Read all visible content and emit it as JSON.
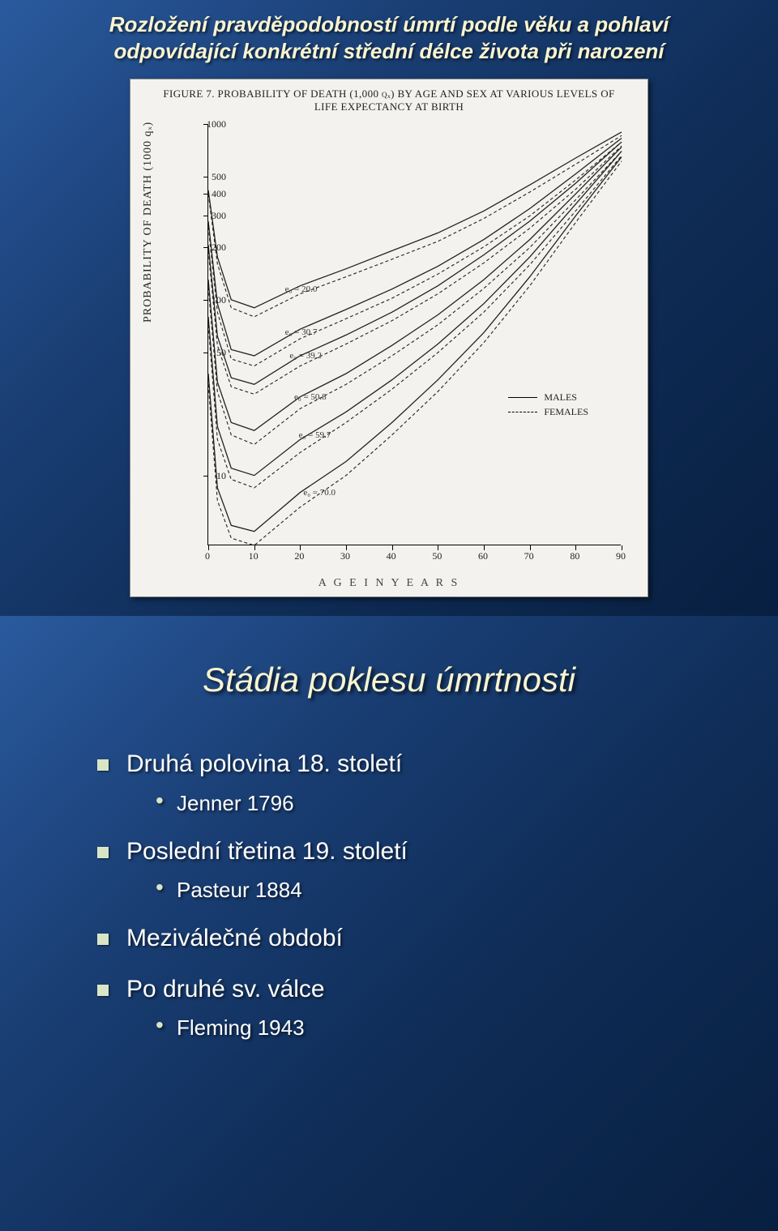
{
  "slide1": {
    "title_line1": "Rozložení pravděpodobností úmrtí podle věku a pohlaví",
    "title_line2": "odpovídající konkrétní střední délce života při narození",
    "figure": {
      "caption": "FIGURE 7.  PROBABILITY OF DEATH (1,000 qₓ) BY AGE AND SEX AT VARIOUS LEVELS OF LIFE EXPECTANCY AT BIRTH",
      "ylabel": "PROBABILITY  OF  DEATH  (1000 qₓ)",
      "xlabel": "A G E    I N    Y E A R S",
      "yticks": [
        {
          "v": 1000,
          "label": "1000"
        },
        {
          "v": 500,
          "label": "500"
        },
        {
          "v": 400,
          "label": "400"
        },
        {
          "v": 300,
          "label": "300"
        },
        {
          "v": 200,
          "label": "200"
        },
        {
          "v": 100,
          "label": "100"
        },
        {
          "v": 50,
          "label": "50"
        },
        {
          "v": 10,
          "label": "10"
        }
      ],
      "xticks": [
        0,
        10,
        20,
        30,
        40,
        50,
        60,
        70,
        80,
        90
      ],
      "xlim": [
        0,
        90
      ],
      "ylim_log": [
        4,
        1000
      ],
      "legend": [
        {
          "label": "MALES",
          "style": "solid"
        },
        {
          "label": "FEMALES",
          "style": "dash"
        }
      ],
      "curve_labels": [
        {
          "text": "e₀ = 20.0",
          "x": 16,
          "y": 115
        },
        {
          "text": "e₀ = 30.7",
          "x": 16,
          "y": 65
        },
        {
          "text": "e₀ = 39.2",
          "x": 17,
          "y": 48
        },
        {
          "text": "e₀ = 50.8",
          "x": 18,
          "y": 28
        },
        {
          "text": "e₀ = 59.7",
          "x": 19,
          "y": 17
        },
        {
          "text": "e₀ = 70.0",
          "x": 20,
          "y": 8
        }
      ],
      "series": [
        {
          "e0": "20.0",
          "sex": "M",
          "pts": [
            [
              0,
              420
            ],
            [
              2,
              175
            ],
            [
              5,
              100
            ],
            [
              10,
              90
            ],
            [
              20,
              120
            ],
            [
              30,
              150
            ],
            [
              40,
              190
            ],
            [
              50,
              240
            ],
            [
              60,
              320
            ],
            [
              70,
              450
            ],
            [
              80,
              640
            ],
            [
              90,
              900
            ]
          ]
        },
        {
          "e0": "20.0",
          "sex": "F",
          "pts": [
            [
              0,
              400
            ],
            [
              2,
              160
            ],
            [
              5,
              90
            ],
            [
              10,
              80
            ],
            [
              20,
              108
            ],
            [
              30,
              135
            ],
            [
              40,
              170
            ],
            [
              50,
              215
            ],
            [
              60,
              290
            ],
            [
              70,
              410
            ],
            [
              80,
              590
            ],
            [
              90,
              860
            ]
          ]
        },
        {
          "e0": "30.7",
          "sex": "M",
          "pts": [
            [
              0,
              280
            ],
            [
              2,
              95
            ],
            [
              5,
              52
            ],
            [
              10,
              48
            ],
            [
              20,
              68
            ],
            [
              30,
              88
            ],
            [
              40,
              115
            ],
            [
              50,
              155
            ],
            [
              60,
              220
            ],
            [
              70,
              330
            ],
            [
              80,
              520
            ],
            [
              90,
              830
            ]
          ]
        },
        {
          "e0": "30.7",
          "sex": "F",
          "pts": [
            [
              0,
              260
            ],
            [
              2,
              85
            ],
            [
              5,
              46
            ],
            [
              10,
              42
            ],
            [
              20,
              60
            ],
            [
              30,
              78
            ],
            [
              40,
              102
            ],
            [
              50,
              140
            ],
            [
              60,
              200
            ],
            [
              70,
              300
            ],
            [
              80,
              480
            ],
            [
              90,
              790
            ]
          ]
        },
        {
          "e0": "39.2",
          "sex": "M",
          "pts": [
            [
              0,
              205
            ],
            [
              2,
              62
            ],
            [
              5,
              36
            ],
            [
              10,
              33
            ],
            [
              20,
              48
            ],
            [
              30,
              63
            ],
            [
              40,
              85
            ],
            [
              50,
              120
            ],
            [
              60,
              180
            ],
            [
              70,
              280
            ],
            [
              80,
              460
            ],
            [
              90,
              790
            ]
          ]
        },
        {
          "e0": "39.2",
          "sex": "F",
          "pts": [
            [
              0,
              190
            ],
            [
              2,
              55
            ],
            [
              5,
              32
            ],
            [
              10,
              29
            ],
            [
              20,
              42
            ],
            [
              30,
              56
            ],
            [
              40,
              76
            ],
            [
              50,
              108
            ],
            [
              60,
              162
            ],
            [
              70,
              255
            ],
            [
              80,
              425
            ],
            [
              90,
              750
            ]
          ]
        },
        {
          "e0": "50.8",
          "sex": "M",
          "pts": [
            [
              0,
              130
            ],
            [
              2,
              34
            ],
            [
              5,
              20
            ],
            [
              10,
              18
            ],
            [
              20,
              28
            ],
            [
              30,
              38
            ],
            [
              40,
              55
            ],
            [
              50,
              82
            ],
            [
              60,
              130
            ],
            [
              70,
              220
            ],
            [
              80,
              400
            ],
            [
              90,
              740
            ]
          ]
        },
        {
          "e0": "50.8",
          "sex": "F",
          "pts": [
            [
              0,
              118
            ],
            [
              2,
              30
            ],
            [
              5,
              17
            ],
            [
              10,
              15
            ],
            [
              20,
              24
            ],
            [
              30,
              33
            ],
            [
              40,
              48
            ],
            [
              50,
              72
            ],
            [
              60,
              116
            ],
            [
              70,
              198
            ],
            [
              80,
              370
            ],
            [
              90,
              700
            ]
          ]
        },
        {
          "e0": "59.7",
          "sex": "M",
          "pts": [
            [
              0,
              80
            ],
            [
              2,
              19
            ],
            [
              5,
              11
            ],
            [
              10,
              10
            ],
            [
              20,
              16
            ],
            [
              30,
              23
            ],
            [
              40,
              35
            ],
            [
              50,
              56
            ],
            [
              60,
              95
            ],
            [
              70,
              175
            ],
            [
              80,
              350
            ],
            [
              90,
              700
            ]
          ]
        },
        {
          "e0": "59.7",
          "sex": "F",
          "pts": [
            [
              0,
              72
            ],
            [
              2,
              16
            ],
            [
              5,
              9.5
            ],
            [
              10,
              8.5
            ],
            [
              20,
              13.5
            ],
            [
              30,
              20
            ],
            [
              40,
              31
            ],
            [
              50,
              50
            ],
            [
              60,
              85
            ],
            [
              70,
              158
            ],
            [
              80,
              320
            ],
            [
              90,
              660
            ]
          ]
        },
        {
          "e0": "70.0",
          "sex": "M",
          "pts": [
            [
              0,
              38
            ],
            [
              2,
              8.5
            ],
            [
              5,
              5.2
            ],
            [
              10,
              4.8
            ],
            [
              20,
              8
            ],
            [
              30,
              12
            ],
            [
              40,
              20
            ],
            [
              50,
              35
            ],
            [
              60,
              65
            ],
            [
              70,
              135
            ],
            [
              80,
              300
            ],
            [
              90,
              650
            ]
          ]
        },
        {
          "e0": "70.0",
          "sex": "F",
          "pts": [
            [
              0,
              33
            ],
            [
              2,
              7.2
            ],
            [
              5,
              4.4
            ],
            [
              10,
              4.0
            ],
            [
              20,
              6.6
            ],
            [
              30,
              10
            ],
            [
              40,
              17
            ],
            [
              50,
              30
            ],
            [
              60,
              57
            ],
            [
              70,
              120
            ],
            [
              80,
              275
            ],
            [
              90,
              615
            ]
          ]
        }
      ],
      "colors": {
        "line": "#222",
        "bg": "#f3f2ef"
      }
    }
  },
  "slide2": {
    "title": "Stádia poklesu úmrtnosti",
    "bullets": [
      {
        "text": "Druhá polovina 18. století",
        "sub": [
          "Jenner 1796"
        ]
      },
      {
        "text": "Poslední třetina 19. století",
        "sub": [
          "Pasteur 1884"
        ]
      },
      {
        "text": "Meziválečné období",
        "sub": []
      },
      {
        "text": "Po druhé sv. válce",
        "sub": [
          "Fleming 1943"
        ]
      }
    ]
  }
}
